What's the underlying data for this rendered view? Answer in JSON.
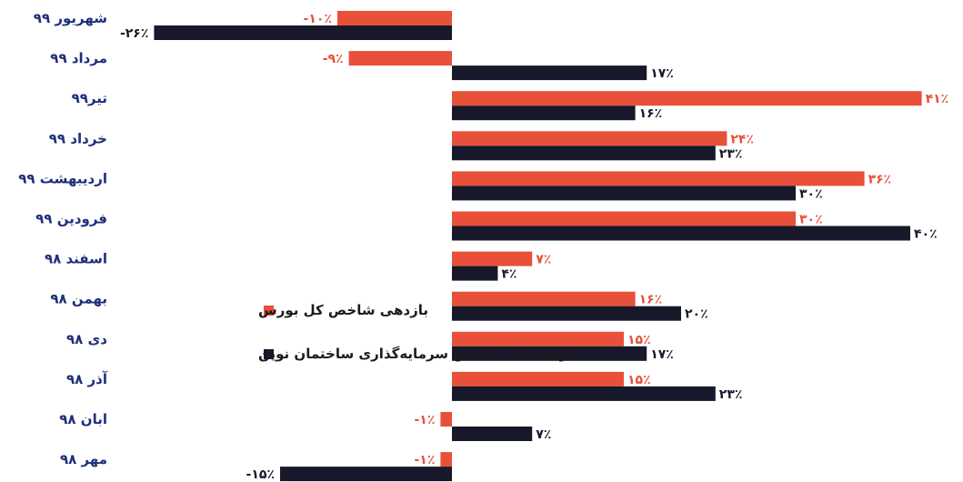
{
  "chart_data": {
    "type": "bar",
    "orientation": "horizontal",
    "categories": [
      "شهریور ۹۹",
      "مرداد ۹۹",
      "تیر۹۹",
      "خرداد ۹۹",
      "اردیبهشت ۹۹",
      "فرودین ۹۹",
      "اسفند ۹۸",
      "بهمن ۹۸",
      "دی ۹۸",
      "آذر ۹۸",
      "ابان ۹۸",
      "مهر ۹۸"
    ],
    "series": [
      {
        "name": "بازدهی شاخص کل بورس",
        "color": "#e8503a",
        "values": [
          -10,
          -9,
          41,
          24,
          36,
          30,
          7,
          16,
          15,
          15,
          -1,
          -1
        ],
        "labels": [
          "-۱۰٪",
          "-۹٪",
          "۴۱٪",
          "۲۴٪",
          "۳۶٪",
          "۳۰٪",
          "۷٪",
          "۱۶٪",
          "۱۵٪",
          "۱۵٪",
          "-۱٪",
          "-۱٪"
        ]
      },
      {
        "name": "بازدهی کل شاخص سرمایه‌گذاری ساختمان نوین",
        "color": "#17192b",
        "values": [
          -26,
          17,
          16,
          23,
          30,
          40,
          4,
          20,
          17,
          23,
          7,
          -15
        ],
        "labels": [
          "-۲۶٪",
          "۱۷٪",
          "۱۶٪",
          "۲۳٪",
          "۳۰٪",
          "۴۰٪",
          "۴٪",
          "۲۰٪",
          "۱۷٪",
          "۲۳٪",
          "۷٪",
          "-۱۵٪"
        ]
      }
    ],
    "xlim": [
      -26,
      41
    ],
    "category_label_color": "#1f2f7a",
    "legend": "left"
  }
}
